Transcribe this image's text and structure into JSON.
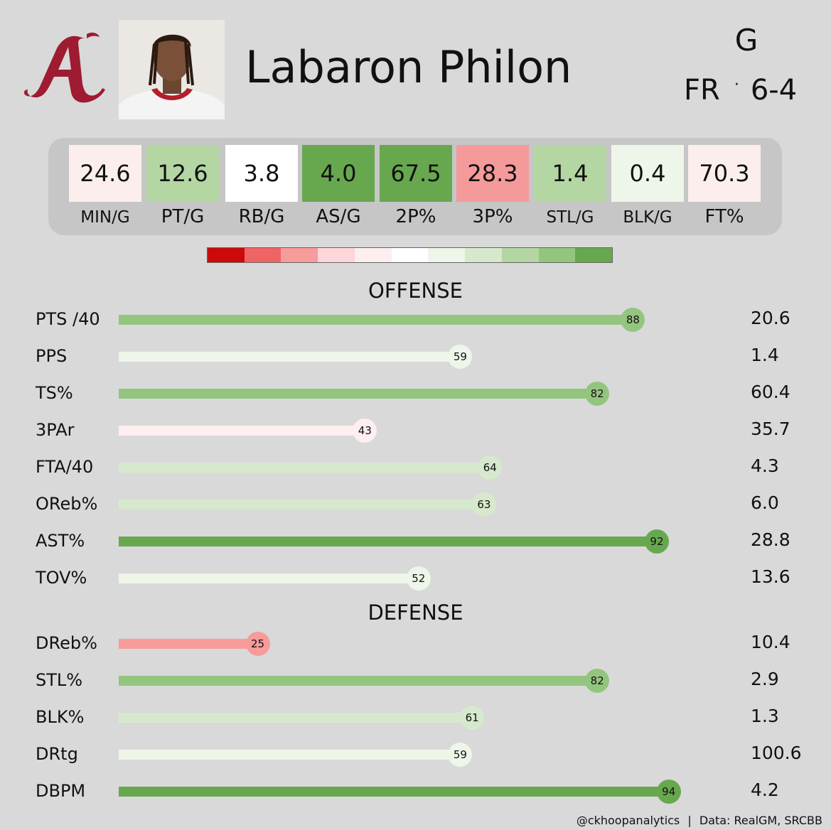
{
  "header": {
    "name": "Labaron Philon",
    "position": "G",
    "class": "FR",
    "separator": "·",
    "height": "6-4",
    "logo_icon": "alabama-script-a-logo",
    "headshot_icon": "player-headshot"
  },
  "stats": [
    {
      "value": "24.6",
      "label": "MIN/G",
      "color": "#fdeeee"
    },
    {
      "value": "12.6",
      "label": "PT/G",
      "color": "#b3d6a3"
    },
    {
      "value": "3.8",
      "label": "RB/G",
      "color": "#ffffff"
    },
    {
      "value": "4.0",
      "label": "AS/G",
      "color": "#67a84f"
    },
    {
      "value": "67.5",
      "label": "2P%",
      "color": "#67a84f"
    },
    {
      "value": "28.3",
      "label": "3P%",
      "color": "#f59a9a"
    },
    {
      "value": "1.4",
      "label": "STL/G",
      "color": "#b3d6a3"
    },
    {
      "value": "0.4",
      "label": "BLK/G",
      "color": "#eef6ea"
    },
    {
      "value": "70.3",
      "label": "FT%",
      "color": "#fdeeee"
    }
  ],
  "legend_colors": [
    "#cc0a0a",
    "#ef6464",
    "#f79b9b",
    "#fcd6d9",
    "#fdeef0",
    "#ffffff",
    "#edf6e9",
    "#d6e9cd",
    "#b3d6a3",
    "#94c57f",
    "#67a84f"
  ],
  "chart_data": {
    "type": "bar",
    "sections": [
      {
        "title": "OFFENSE",
        "rows": [
          {
            "label": "PTS /40",
            "percentile": 88,
            "value": "20.6",
            "color": "#94c57f"
          },
          {
            "label": "PPS",
            "percentile": 59,
            "value": "1.4",
            "color": "#edf6e9"
          },
          {
            "label": "TS%",
            "percentile": 82,
            "value": "60.4",
            "color": "#94c57f"
          },
          {
            "label": "3PAr",
            "percentile": 43,
            "value": "35.7",
            "color": "#fdeef0"
          },
          {
            "label": "FTA/40",
            "percentile": 64,
            "value": "4.3",
            "color": "#d6e9cd"
          },
          {
            "label": "OReb%",
            "percentile": 63,
            "value": "6.0",
            "color": "#d6e9cd"
          },
          {
            "label": "AST%",
            "percentile": 92,
            "value": "28.8",
            "color": "#67a84f"
          },
          {
            "label": "TOV%",
            "percentile": 52,
            "value": "13.6",
            "color": "#edf6e9"
          }
        ]
      },
      {
        "title": "DEFENSE",
        "rows": [
          {
            "label": "DReb%",
            "percentile": 25,
            "value": "10.4",
            "color": "#f79b9b"
          },
          {
            "label": "STL%",
            "percentile": 82,
            "value": "2.9",
            "color": "#94c57f"
          },
          {
            "label": "BLK%",
            "percentile": 61,
            "value": "1.3",
            "color": "#d6e9cd"
          },
          {
            "label": "DRtg",
            "percentile": 59,
            "value": "100.6",
            "color": "#edf6e9"
          },
          {
            "label": "DBPM",
            "percentile": 94,
            "value": "4.2",
            "color": "#67a84f"
          }
        ]
      }
    ],
    "xlim": [
      0,
      100
    ]
  },
  "footer": {
    "credit": "@ckhoopanalytics",
    "divider": "|",
    "source": "Data: RealGM, SRCBB"
  }
}
